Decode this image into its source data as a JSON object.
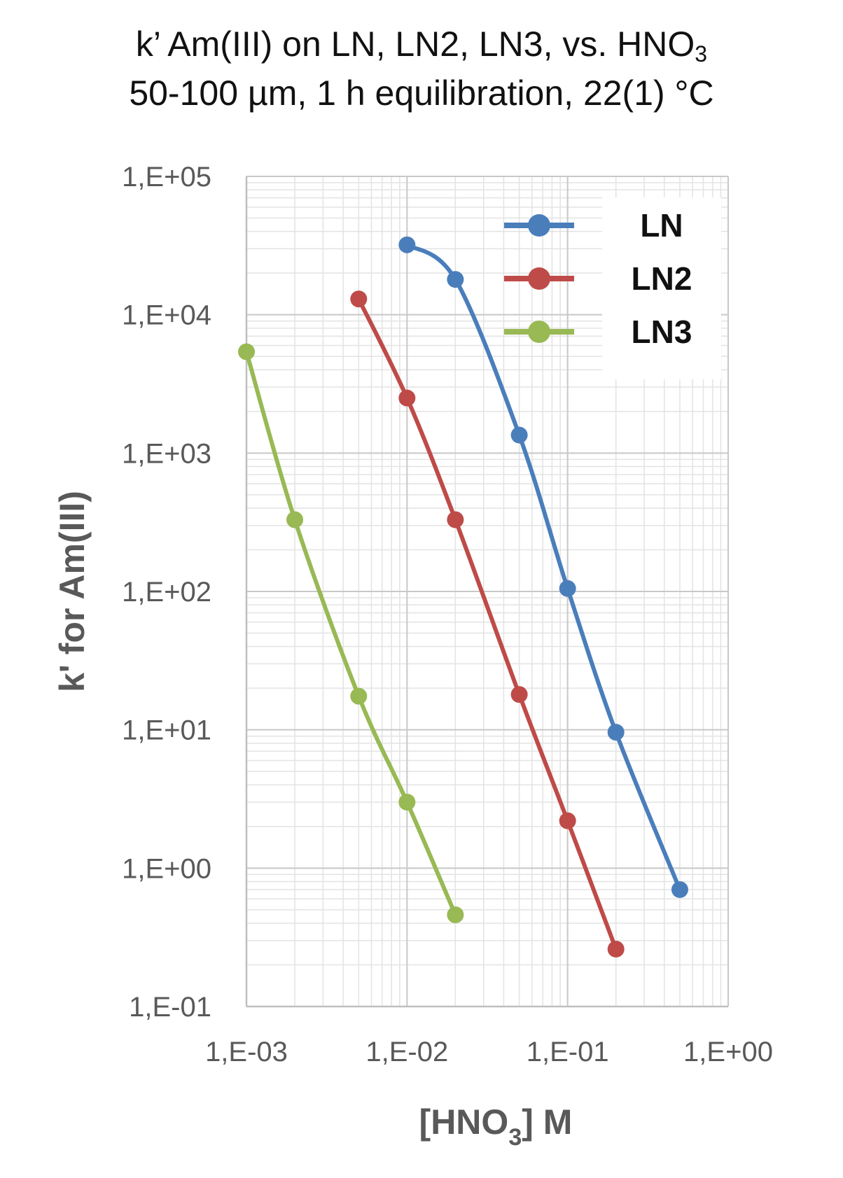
{
  "chart_data": {
    "type": "line",
    "title_line1_main": "k’ Am(III) on LN, LN2, LN3, vs. HNO",
    "title_line1_sub": "3",
    "title_line2": "50-100 µm, 1 h equilibration, 22(1) °C",
    "xlabel_main": "[HNO",
    "xlabel_sub": "3",
    "xlabel_tail": "] M",
    "ylabel": "k' for Am(III)",
    "xscale": "log",
    "yscale": "log",
    "xlim": [
      0.001,
      1
    ],
    "ylim": [
      0.1,
      100000
    ],
    "x_tick_values": [
      0.001,
      0.01,
      0.1,
      1
    ],
    "x_tick_labels": [
      "1,E-03",
      "1,E-02",
      "1,E-01",
      "1,E+00"
    ],
    "y_tick_values": [
      0.1,
      1,
      10,
      100,
      1000,
      10000,
      100000
    ],
    "y_tick_labels": [
      "1,E-01",
      "1,E+00",
      "1,E+01",
      "1,E+02",
      "1,E+03",
      "1,E+04",
      "1,E+05"
    ],
    "grid": true,
    "legend_position": "top-right",
    "series": [
      {
        "name": "LN",
        "color": "#4a7ebb",
        "points": [
          [
            0.01,
            32000
          ],
          [
            0.02,
            18000
          ],
          [
            0.05,
            1350
          ],
          [
            0.1,
            105
          ],
          [
            0.2,
            9.6
          ],
          [
            0.5,
            0.7
          ]
        ]
      },
      {
        "name": "LN2",
        "color": "#be4b48",
        "points": [
          [
            0.005,
            13000
          ],
          [
            0.01,
            2500
          ],
          [
            0.02,
            330
          ],
          [
            0.05,
            18
          ],
          [
            0.1,
            2.2
          ],
          [
            0.2,
            0.26
          ]
        ]
      },
      {
        "name": "LN3",
        "color": "#98b954",
        "points": [
          [
            0.001,
            5400
          ],
          [
            0.002,
            330
          ],
          [
            0.005,
            17.5
          ],
          [
            0.01,
            3.0
          ],
          [
            0.02,
            0.46
          ]
        ]
      }
    ]
  }
}
